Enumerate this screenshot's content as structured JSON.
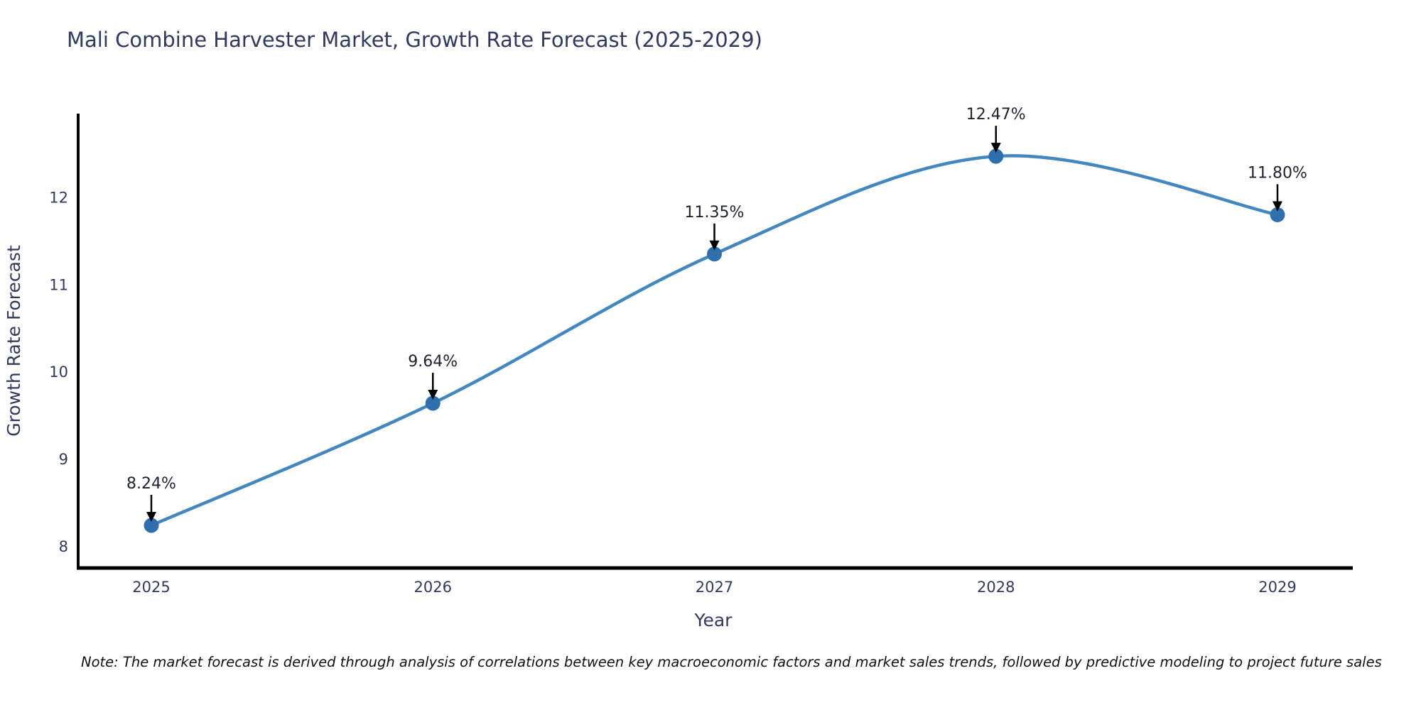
{
  "chart_data": {
    "type": "line",
    "title": "Mali Combine Harvester Market, Growth Rate Forecast (2025-2029)",
    "xlabel": "Year",
    "ylabel": "Growth Rate Forecast",
    "x": [
      2025,
      2026,
      2027,
      2028,
      2029
    ],
    "values": [
      8.24,
      9.64,
      11.35,
      12.47,
      11.8
    ],
    "point_labels": [
      "8.24%",
      "9.64%",
      "11.35%",
      "12.47%",
      "11.80%"
    ],
    "yticks": [
      8,
      9,
      10,
      11,
      12
    ],
    "ylim": [
      7.75,
      12.96
    ],
    "grid": false,
    "legend_position": "none",
    "note": "Note: The market forecast is derived through analysis of correlations between key macroeconomic factors and market sales trends, followed by predictive modeling to project future sales",
    "colors": {
      "line": "#4287c0",
      "marker": "#2f6fae",
      "axis": "#000000",
      "axis_text": "#2f3a5c",
      "annotation_text": "#1c2230",
      "background": "#ffffff"
    }
  }
}
